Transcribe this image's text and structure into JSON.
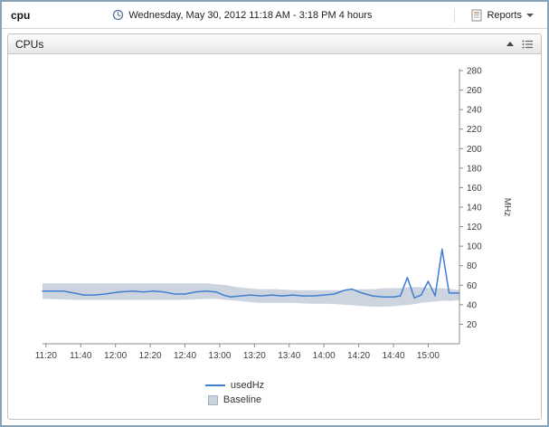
{
  "window": {
    "title": "cpu"
  },
  "header": {
    "datetime": "Wednesday, May 30, 2012 11:18 AM - 3:18 PM 4 hours",
    "reports_label": "Reports"
  },
  "panel": {
    "title": "CPUs"
  },
  "chart_data": {
    "type": "line",
    "title": "",
    "xlabel": "",
    "ylabel": "MHz",
    "ylim": [
      0,
      280
    ],
    "y_ticks": [
      20,
      40,
      60,
      80,
      100,
      120,
      140,
      160,
      180,
      200,
      220,
      240,
      260,
      280
    ],
    "x_range": [
      0,
      240
    ],
    "x_ticks": [
      {
        "label": "11:20",
        "t": 2
      },
      {
        "label": "11:40",
        "t": 22
      },
      {
        "label": "12:00",
        "t": 42
      },
      {
        "label": "12:20",
        "t": 62
      },
      {
        "label": "12:40",
        "t": 82
      },
      {
        "label": "13:00",
        "t": 102
      },
      {
        "label": "13:20",
        "t": 122
      },
      {
        "label": "13:40",
        "t": 142
      },
      {
        "label": "14:00",
        "t": 162
      },
      {
        "label": "14:20",
        "t": 182
      },
      {
        "label": "14:40",
        "t": 202
      },
      {
        "label": "15:00",
        "t": 222
      }
    ],
    "grid": false,
    "legend_position": "bottom",
    "series": [
      {
        "name": "Baseline",
        "type": "band",
        "color": "#ccd5df",
        "points": [
          [
            0,
            46,
            62
          ],
          [
            20,
            45,
            62
          ],
          [
            40,
            45,
            62
          ],
          [
            60,
            45,
            62
          ],
          [
            80,
            45,
            62
          ],
          [
            95,
            46,
            62
          ],
          [
            100,
            46,
            61
          ],
          [
            106,
            45,
            60
          ],
          [
            112,
            44,
            58
          ],
          [
            118,
            43,
            57
          ],
          [
            124,
            42,
            56
          ],
          [
            134,
            42,
            56
          ],
          [
            144,
            42,
            55
          ],
          [
            154,
            41,
            55
          ],
          [
            164,
            41,
            55
          ],
          [
            174,
            40,
            55
          ],
          [
            182,
            39,
            56
          ],
          [
            190,
            38,
            56
          ],
          [
            198,
            38,
            57
          ],
          [
            206,
            39,
            57
          ],
          [
            212,
            40,
            58
          ],
          [
            218,
            42,
            58
          ],
          [
            224,
            43,
            57
          ],
          [
            230,
            44,
            57
          ],
          [
            236,
            44,
            56
          ],
          [
            240,
            45,
            55
          ]
        ]
      },
      {
        "name": "usedHz",
        "type": "line",
        "color": "#3f7ed0",
        "points": [
          [
            0,
            54
          ],
          [
            6,
            54
          ],
          [
            12,
            54
          ],
          [
            18,
            52
          ],
          [
            24,
            50
          ],
          [
            30,
            50
          ],
          [
            36,
            51
          ],
          [
            44,
            53
          ],
          [
            52,
            54
          ],
          [
            58,
            53
          ],
          [
            64,
            54
          ],
          [
            70,
            53
          ],
          [
            76,
            51
          ],
          [
            82,
            51
          ],
          [
            88,
            53
          ],
          [
            94,
            54
          ],
          [
            100,
            53
          ],
          [
            104,
            50
          ],
          [
            108,
            48
          ],
          [
            114,
            49
          ],
          [
            120,
            50
          ],
          [
            126,
            49
          ],
          [
            132,
            50
          ],
          [
            138,
            49
          ],
          [
            144,
            50
          ],
          [
            150,
            49
          ],
          [
            156,
            49
          ],
          [
            162,
            50
          ],
          [
            168,
            51
          ],
          [
            174,
            55
          ],
          [
            178,
            56
          ],
          [
            184,
            52
          ],
          [
            190,
            49
          ],
          [
            196,
            48
          ],
          [
            202,
            48
          ],
          [
            206,
            49
          ],
          [
            210,
            68
          ],
          [
            214,
            47
          ],
          [
            218,
            50
          ],
          [
            222,
            64
          ],
          [
            226,
            49
          ],
          [
            230,
            97
          ],
          [
            234,
            52
          ],
          [
            240,
            52
          ]
        ]
      }
    ],
    "legend": [
      {
        "label": "usedHz",
        "swatch": "line",
        "color": "#3f7ed0"
      },
      {
        "label": "Baseline",
        "swatch": "area",
        "color": "#ccd5df",
        "border": "#a3b2c0"
      }
    ]
  }
}
